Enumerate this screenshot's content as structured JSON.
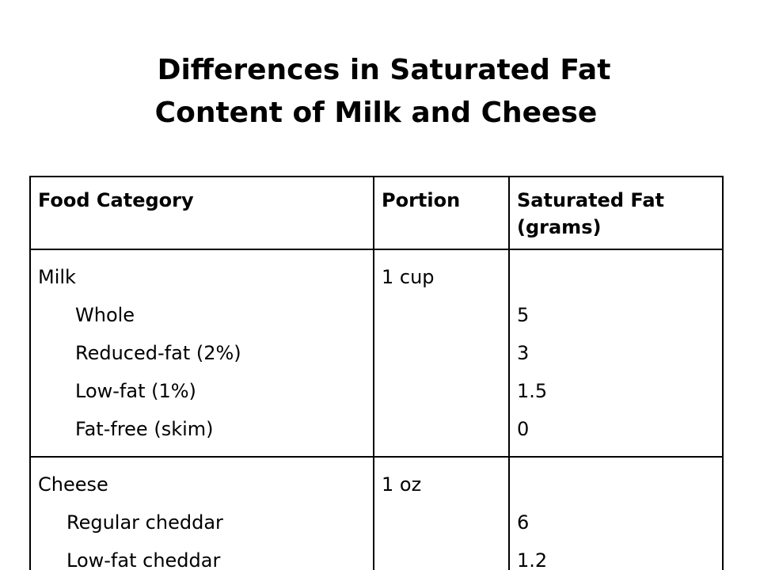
{
  "title": {
    "line1": "Differences in Saturated Fat",
    "line2": "Content of Milk and Cheese"
  },
  "table": {
    "headers": [
      "Food Category",
      "Portion",
      "Saturated Fat (grams)"
    ],
    "groups": [
      {
        "category": "Milk",
        "portion": "1 cup",
        "items": [
          {
            "name": "Whole",
            "sat_fat": "5"
          },
          {
            "name": "Reduced-fat (2%)",
            "sat_fat": "3"
          },
          {
            "name": "Low-fat (1%)",
            "sat_fat": "1.5"
          },
          {
            "name": "Fat-free (skim)",
            "sat_fat": "0"
          }
        ]
      },
      {
        "category": "Cheese",
        "portion": "1 oz",
        "items": [
          {
            "name": "Regular cheddar",
            "sat_fat": "6"
          },
          {
            "name": "Low-fat cheddar",
            "sat_fat": "1.2"
          }
        ]
      }
    ]
  }
}
